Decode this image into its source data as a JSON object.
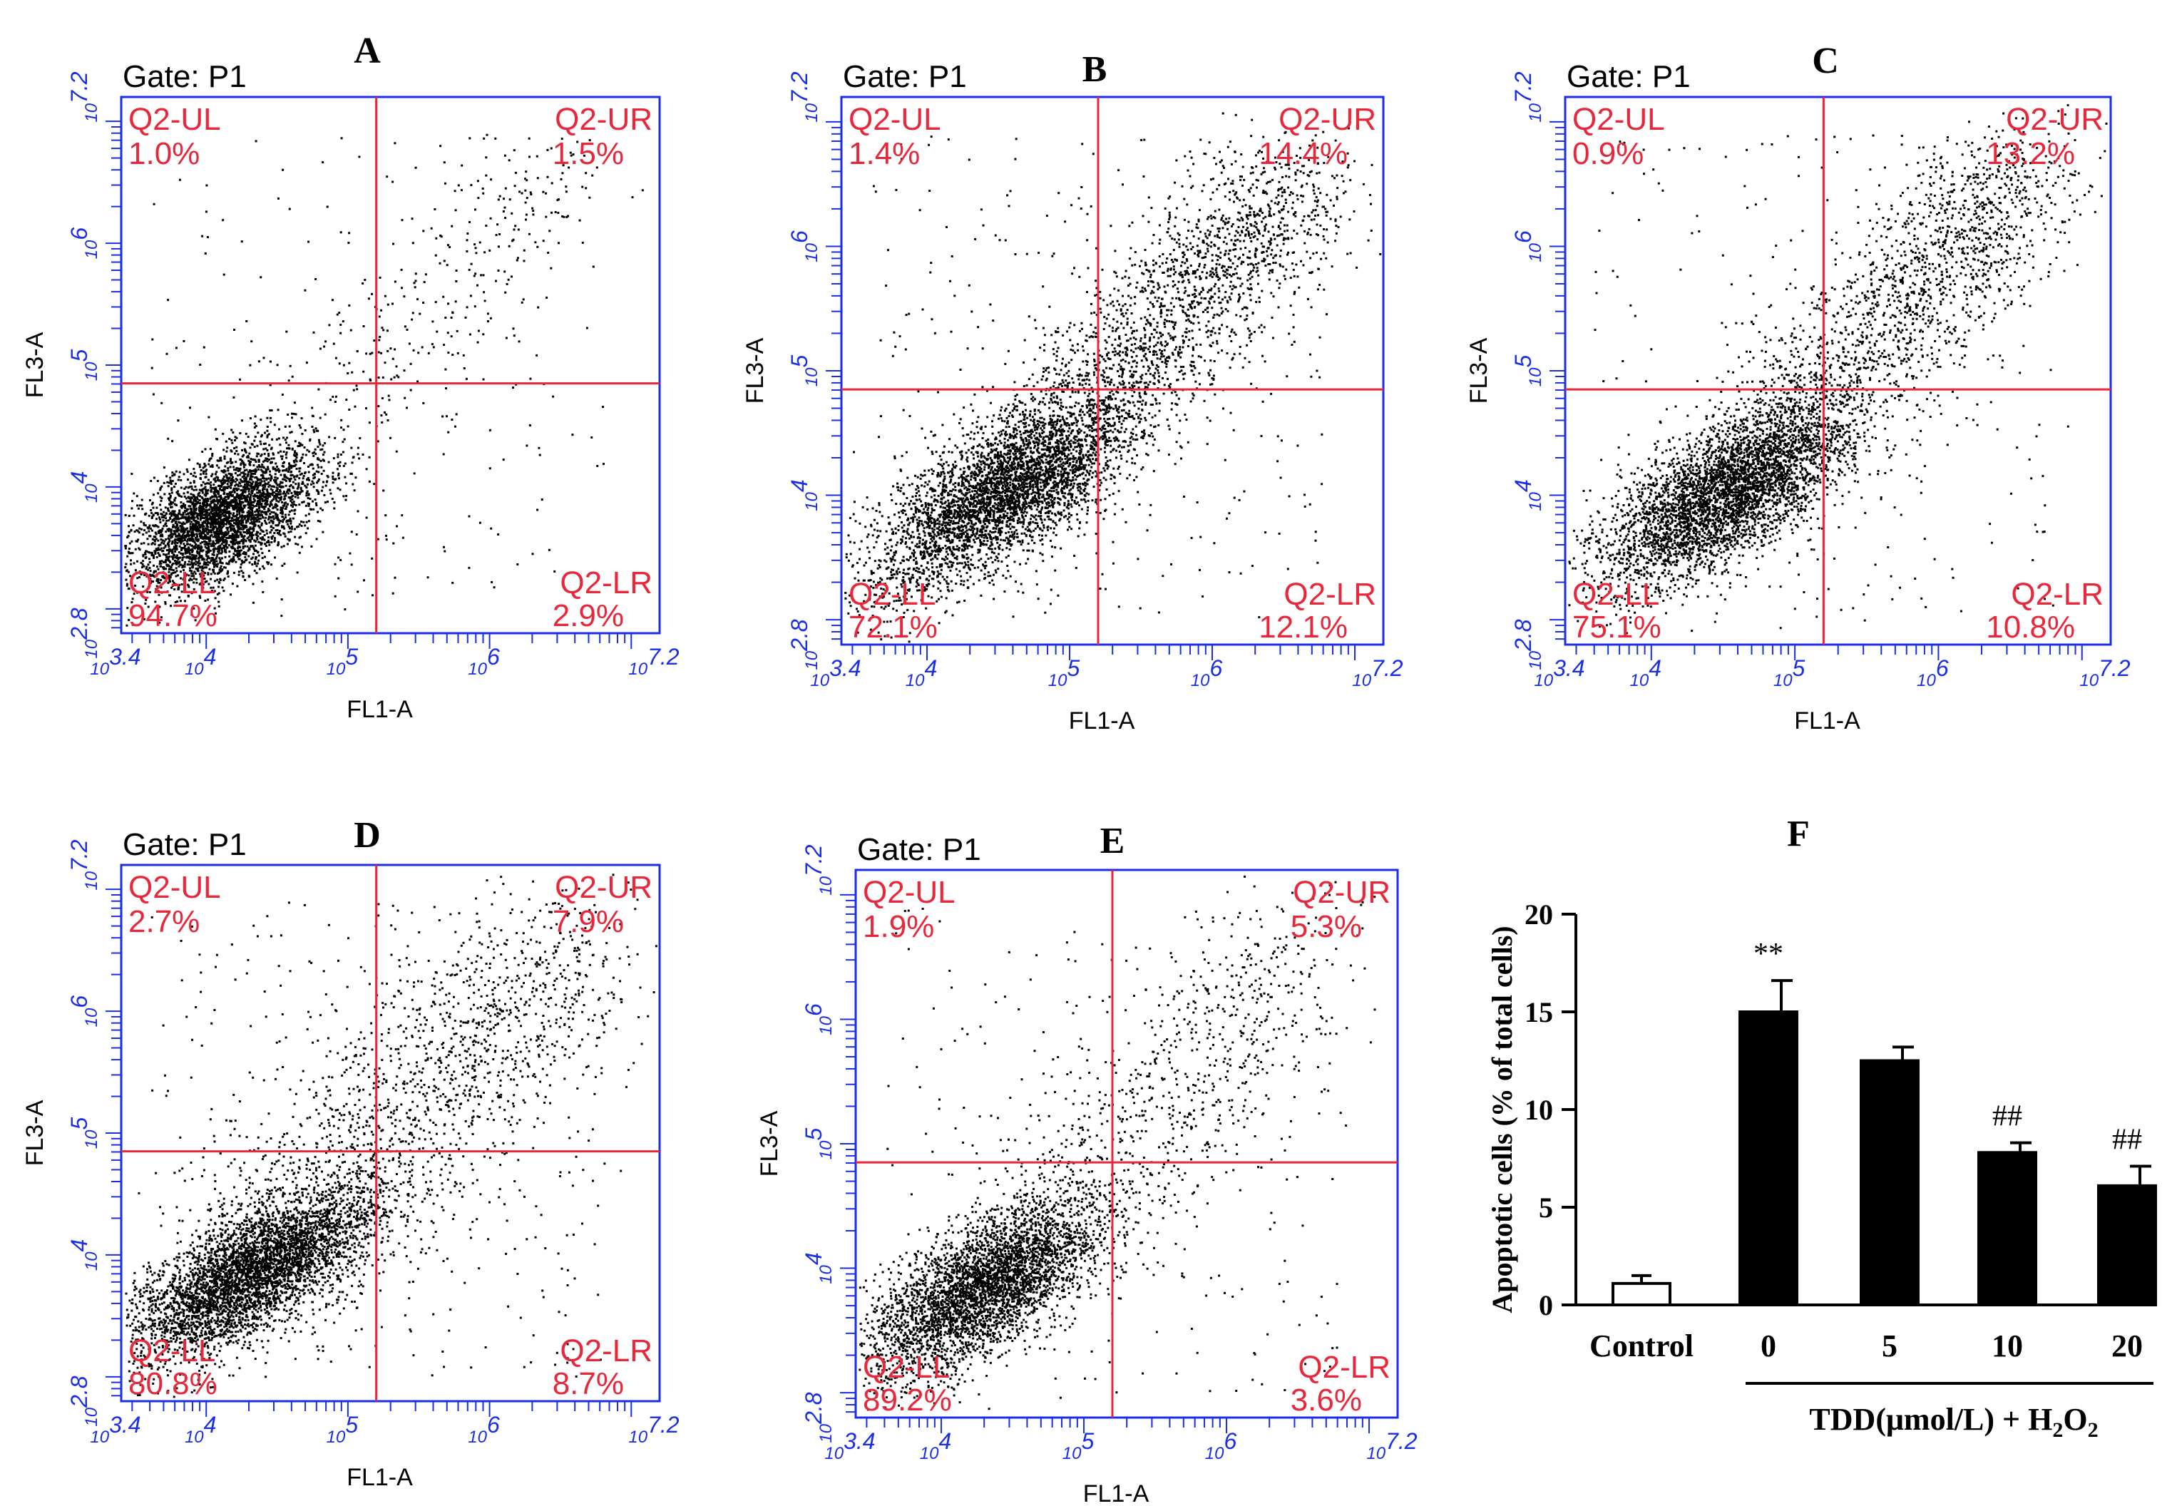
{
  "colors": {
    "axis_blue": "#1a2ee6",
    "gate_red": "#e8283a",
    "dots": "#000000",
    "bar": "#000000"
  },
  "chart_data": [
    {
      "type": "scatter",
      "panel": "A",
      "gate": "Gate: P1",
      "xlabel": "FL1-A",
      "ylabel": "FL3-A",
      "xlim": [
        3.4,
        7.2
      ],
      "ylim": [
        2.8,
        7.2
      ],
      "x_ticks": [
        "10^3.4",
        "10^4",
        "10^5",
        "10^6",
        "10^7.2"
      ],
      "y_ticks": [
        "10^2.8",
        "10^4",
        "10^5",
        "10^6",
        "10^7.2"
      ],
      "gate_x": 5.2,
      "gate_y": 4.85,
      "quadrants": {
        "UL": {
          "label": "Q2-UL",
          "pct": "1.0%"
        },
        "UR": {
          "label": "Q2-UR",
          "pct": "1.5%"
        },
        "LL": {
          "label": "Q2-LL",
          "pct": "94.7%"
        },
        "LR": {
          "label": "Q2-LR",
          "pct": "2.9%"
        }
      }
    },
    {
      "type": "scatter",
      "panel": "B",
      "gate": "Gate: P1",
      "xlabel": "FL1-A",
      "ylabel": "FL3-A",
      "xlim": [
        3.4,
        7.2
      ],
      "ylim": [
        2.8,
        7.2
      ],
      "x_ticks": [
        "10^3.4",
        "10^4",
        "10^5",
        "10^6",
        "10^7.2"
      ],
      "y_ticks": [
        "10^2.8",
        "10^4",
        "10^5",
        "10^6",
        "10^7.2"
      ],
      "gate_x": 5.2,
      "gate_y": 4.85,
      "quadrants": {
        "UL": {
          "label": "Q2-UL",
          "pct": "1.4%"
        },
        "UR": {
          "label": "Q2-UR",
          "pct": "14.4%"
        },
        "LL": {
          "label": "Q2-LL",
          "pct": "72.1%"
        },
        "LR": {
          "label": "Q2-LR",
          "pct": "12.1%"
        }
      }
    },
    {
      "type": "scatter",
      "panel": "C",
      "gate": "Gate: P1",
      "xlabel": "FL1-A",
      "ylabel": "FL3-A",
      "xlim": [
        3.4,
        7.2
      ],
      "ylim": [
        2.8,
        7.2
      ],
      "x_ticks": [
        "10^3.4",
        "10^4",
        "10^5",
        "10^6",
        "10^7.2"
      ],
      "y_ticks": [
        "10^2.8",
        "10^4",
        "10^5",
        "10^6",
        "10^7.2"
      ],
      "gate_x": 5.2,
      "gate_y": 4.85,
      "quadrants": {
        "UL": {
          "label": "Q2-UL",
          "pct": "0.9%"
        },
        "UR": {
          "label": "Q2-UR",
          "pct": "13.2%"
        },
        "LL": {
          "label": "Q2-LL",
          "pct": "75.1%"
        },
        "LR": {
          "label": "Q2-LR",
          "pct": "10.8%"
        }
      }
    },
    {
      "type": "scatter",
      "panel": "D",
      "gate": "Gate: P1",
      "xlabel": "FL1-A",
      "ylabel": "FL3-A",
      "xlim": [
        3.4,
        7.2
      ],
      "ylim": [
        2.8,
        7.2
      ],
      "x_ticks": [
        "10^3.4",
        "10^4",
        "10^5",
        "10^6",
        "10^7.2"
      ],
      "y_ticks": [
        "10^2.8",
        "10^4",
        "10^5",
        "10^6",
        "10^7.2"
      ],
      "gate_x": 5.2,
      "gate_y": 4.85,
      "quadrants": {
        "UL": {
          "label": "Q2-UL",
          "pct": "2.7%"
        },
        "UR": {
          "label": "Q2-UR",
          "pct": "7.9%"
        },
        "LL": {
          "label": "Q2-LL",
          "pct": "80.8%"
        },
        "LR": {
          "label": "Q2-LR",
          "pct": "8.7%"
        }
      }
    },
    {
      "type": "scatter",
      "panel": "E",
      "gate": "Gate: P1",
      "xlabel": "FL1-A",
      "ylabel": "FL3-A",
      "xlim": [
        3.4,
        7.2
      ],
      "ylim": [
        2.8,
        7.2
      ],
      "x_ticks": [
        "10^3.4",
        "10^4",
        "10^5",
        "10^6",
        "10^7.2"
      ],
      "y_ticks": [
        "10^2.8",
        "10^4",
        "10^5",
        "10^6",
        "10^7.2"
      ],
      "gate_x": 5.2,
      "gate_y": 4.85,
      "quadrants": {
        "UL": {
          "label": "Q2-UL",
          "pct": "1.9%"
        },
        "UR": {
          "label": "Q2-UR",
          "pct": "5.3%"
        },
        "LL": {
          "label": "Q2-LL",
          "pct": "89.2%"
        },
        "LR": {
          "label": "Q2-LR",
          "pct": "3.6%"
        }
      }
    },
    {
      "type": "bar",
      "panel": "F",
      "categories": [
        "Control",
        "0",
        "5",
        "10",
        "20"
      ],
      "values": [
        1.1,
        15.0,
        12.5,
        7.8,
        6.1
      ],
      "errors": [
        0.4,
        1.6,
        0.7,
        0.5,
        1.0
      ],
      "fills": [
        "white",
        "black",
        "black",
        "black",
        "black"
      ],
      "annotations": [
        "",
        "**",
        "",
        "##",
        "##"
      ],
      "ylabel": "Apoptotic cells (% of total cells)",
      "ylim": [
        0,
        20
      ],
      "yticks": [
        0,
        5,
        10,
        15,
        20
      ],
      "group_label": "TDD(μmol/L) + H2O2"
    }
  ]
}
